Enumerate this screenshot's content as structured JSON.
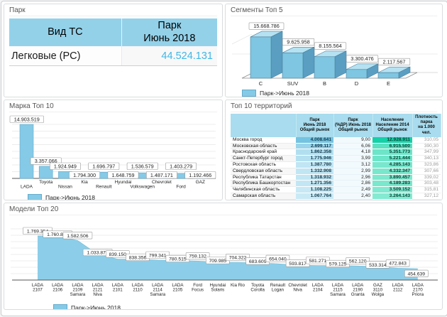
{
  "colors": {
    "accent_blue": "#85cae6",
    "bar_border": "#64abcd",
    "bar3d_front": "#7ec6e2",
    "bar3d_top": "#b5e1f1",
    "bar3d_side": "#5a9ec2",
    "bar3d_stroke": "#47809c",
    "area_fill": "#8ccee9",
    "area_edge": "#79c0dc",
    "table_header_blue": "#93d1e9",
    "terr_header_blue": "#a8dcee",
    "value_blue": "#3eb7e8",
    "heat_park_dark": "#74c3e1",
    "heat_park_light": "#c9e9f5",
    "heat_pop_dark": "#14d1a7",
    "heat_pop_light": "#84ead1",
    "grid_line": "#e6e6e6",
    "axis_line": "#555555",
    "label_box_border": "#999999"
  },
  "panels": {
    "park": {
      "title": "Парк",
      "header_col1": "Вид ТС",
      "header_col2": "Парк\nИюнь 2018",
      "row_label": "Легковые (PC)",
      "row_value": "44.524.131"
    },
    "segments": {
      "title": "Сегменты Топ 5",
      "legend": "Парк->Июнь 2018"
    },
    "brands": {
      "title": "Марка Топ 10",
      "legend": "Парк->Июнь 2018"
    },
    "territories": {
      "title": "Топ 10 территорий",
      "col_name": "",
      "col_park": "Парк\nИюнь 2018\nОбщий рынок",
      "col_share": "Парк\n(%ДР) Июнь 2018\nОбщий рынок",
      "col_pop": "Население\nНаселение 2014\nОбщий рынок",
      "col_dens": "Плотность парка\nна 1.000 чел."
    },
    "models": {
      "title": "Модели Топ 20",
      "legend": "Парк->Июнь 2018"
    }
  },
  "chart_data": [
    {
      "id": "park",
      "type": "table",
      "title": "Парк",
      "columns": [
        "Вид ТС",
        "Парк Июнь 2018"
      ],
      "rows": [
        [
          "Легковые (PC)",
          "44.524.131"
        ]
      ]
    },
    {
      "id": "segments",
      "type": "bar",
      "variant": "3d",
      "title": "Сегменты Топ 5",
      "legend": "Парк->Июнь 2018",
      "categories": [
        "C",
        "SUV",
        "B",
        "D",
        "E"
      ],
      "values": [
        15668786,
        9625958,
        8155564,
        3300476,
        2117567
      ],
      "ylim": [
        0,
        16000000
      ],
      "grid": true,
      "legend_position": "bottom-left"
    },
    {
      "id": "brands",
      "type": "bar",
      "title": "Марка Топ 10",
      "legend": "Парк->Июнь 2018",
      "categories": [
        "LADA",
        "Toyota",
        "Nissan",
        "Kia",
        "Renault",
        "Hyundai",
        "Volkswagen",
        "Chevrolet",
        "Ford",
        "GAZ"
      ],
      "values": [
        14903519,
        3357066,
        1924949,
        1794300,
        1696797,
        1648759,
        1536579,
        1487171,
        1403279,
        1192466
      ],
      "ylim": [
        0,
        15000000
      ],
      "grid": true,
      "legend_position": "bottom-left"
    },
    {
      "id": "territories",
      "type": "table",
      "title": "Топ 10 территорий",
      "columns": [
        "",
        "Парк Июнь 2018 Общий рынок",
        "Парк (%ДР) Июнь 2018 Общий рынок",
        "Население Население 2014 Общий рынок",
        "Плотность парка на 1.000 чел."
      ],
      "rows": [
        [
          "Москва город",
          "4.008.641",
          "9,00",
          "12.928.911",
          "310,05"
        ],
        [
          "Московская область",
          "2.699.117",
          "6,06",
          "6.915.500",
          "390,30"
        ],
        [
          "Краснодарский край",
          "1.862.358",
          "4,18",
          "5.351.773",
          "347,99"
        ],
        [
          "Санкт-Петербург город",
          "1.775.946",
          "3,99",
          "5.221.444",
          "340,13"
        ],
        [
          "Ростовская область",
          "1.387.780",
          "3,12",
          "4.285.143",
          "323,86"
        ],
        [
          "Свердловская область",
          "1.332.908",
          "2,99",
          "4.332.347",
          "307,66"
        ],
        [
          "Республика Татарстан",
          "1.318.932",
          "2,96",
          "3.890.457",
          "339,02"
        ],
        [
          "Республика Башкортостан",
          "1.271.356",
          "2,86",
          "4.189.283",
          "303,48"
        ],
        [
          "Челябинская область",
          "1.108.225",
          "2,49",
          "3.509.152",
          "315,81"
        ],
        [
          "Самарская область",
          "1.067.764",
          "2,40",
          "3.264.143",
          "327,12"
        ]
      ]
    },
    {
      "id": "models",
      "type": "area",
      "title": "Модели Топ 20",
      "legend": "Парк->Июнь 2018",
      "categories": [
        "LADA 2107",
        "LADA 2106",
        "LADA 2109 Samara",
        "LADA 2121 Niva",
        "LADA 2101",
        "LADA 2110",
        "LADA 2114 Samara",
        "LADA 2105",
        "Ford Focus",
        "Hyundai Solaris",
        "Kia Rio",
        "Toyota Corolla",
        "Renault Logan",
        "Chevrolet Niva",
        "LADA 2104",
        "LADA 2115 Samara",
        "LADA 2190 Granta",
        "GAZ 3110 Wolga",
        "LADA 2112",
        "LADA 2170 Priora"
      ],
      "axis_lines": [
        [
          "LADA",
          "2107"
        ],
        [
          "LADA",
          "2106"
        ],
        [
          "LADA",
          "2109",
          "Samara"
        ],
        [
          "LADA",
          "2121",
          "Niva"
        ],
        [
          "LADA",
          "2101"
        ],
        [
          "LADA",
          "2110"
        ],
        [
          "LADA",
          "2114",
          "Samara"
        ],
        [
          "LADA",
          "2105"
        ],
        [
          "Ford",
          "Focus"
        ],
        [
          "Hyundai",
          "Solaris"
        ],
        [
          "Kia Rio"
        ],
        [
          "Toyota",
          "Corolla"
        ],
        [
          "Renault",
          "Logan"
        ],
        [
          "Chevrolet",
          "Niva"
        ],
        [
          "LADA",
          "2104"
        ],
        [
          "LADA",
          "2115",
          "Samara"
        ],
        [
          "LADA",
          "2190",
          "Granta"
        ],
        [
          "GAZ",
          "3110",
          "Wolga"
        ],
        [
          "LADA",
          "2112"
        ],
        [
          "LADA",
          "2170",
          "Priora"
        ]
      ],
      "values": [
        1769354,
        1760823,
        1582506,
        1033874,
        839150,
        838356,
        799341,
        780515,
        759132,
        709985,
        704322,
        683609,
        654040,
        593817,
        581271,
        579125,
        562120,
        533314,
        472843,
        454639
      ],
      "ylim": [
        0,
        2000000
      ],
      "grid": true,
      "legend_position": "bottom-left"
    }
  ]
}
